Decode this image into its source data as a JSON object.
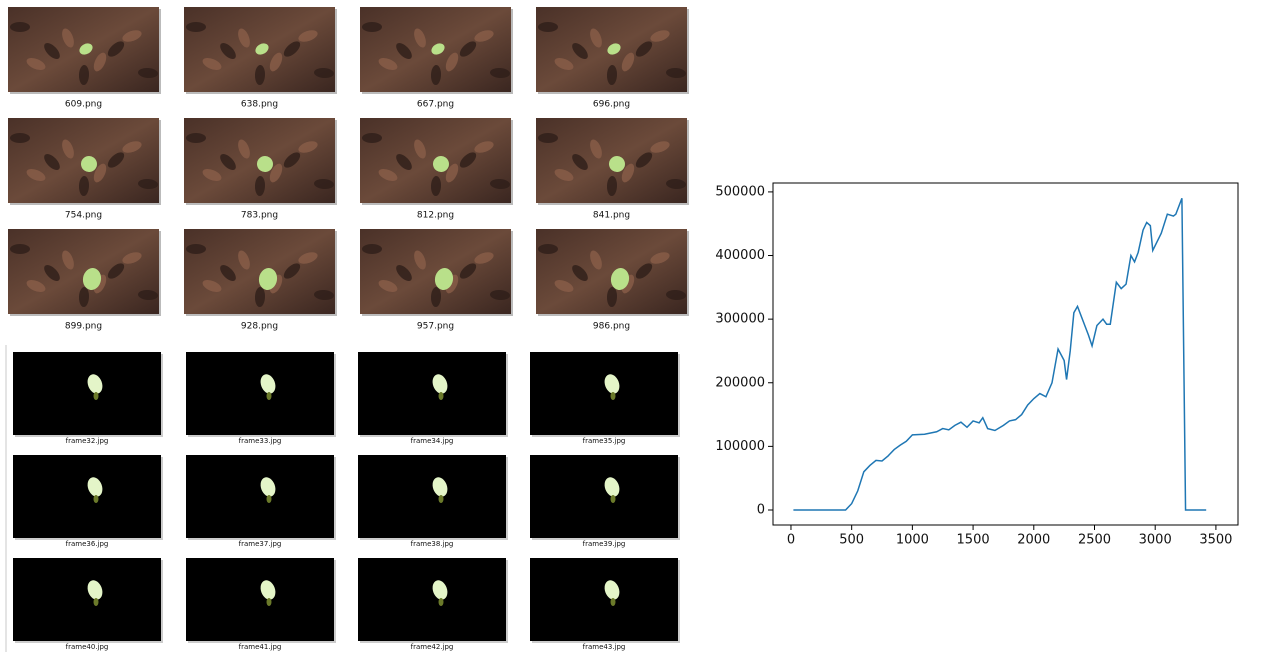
{
  "top_grid": {
    "files": [
      "609.png",
      "638.png",
      "667.png",
      "696.png",
      "754.png",
      "783.png",
      "812.png",
      "841.png",
      "899.png",
      "928.png",
      "957.png",
      "986.png"
    ]
  },
  "bottom_grid": {
    "files": [
      "frame32.jpg",
      "frame33.jpg",
      "frame34.jpg",
      "frame35.jpg",
      "frame36.jpg",
      "frame37.jpg",
      "frame38.jpg",
      "frame39.jpg",
      "frame40.jpg",
      "frame41.jpg",
      "frame42.jpg",
      "frame43.jpg"
    ]
  },
  "chart_data": {
    "type": "line",
    "x": [
      20,
      450,
      500,
      550,
      600,
      650,
      700,
      750,
      800,
      850,
      900,
      950,
      1000,
      1100,
      1200,
      1250,
      1300,
      1350,
      1400,
      1450,
      1500,
      1550,
      1580,
      1620,
      1680,
      1750,
      1800,
      1850,
      1900,
      1950,
      2000,
      2050,
      2100,
      2150,
      2200,
      2250,
      2270,
      2300,
      2330,
      2360,
      2400,
      2450,
      2480,
      2520,
      2570,
      2600,
      2630,
      2680,
      2720,
      2760,
      2800,
      2830,
      2860,
      2900,
      2930,
      2960,
      2980,
      3050,
      3100,
      3150,
      3170,
      3220,
      3250,
      3420
    ],
    "series": [
      {
        "color": "#1f77b4",
        "values": [
          0,
          0,
          10000,
          30000,
          60000,
          70000,
          78000,
          77000,
          85000,
          95000,
          102000,
          108000,
          118000,
          119000,
          123000,
          128000,
          126000,
          133000,
          138000,
          130000,
          140000,
          137000,
          145000,
          128000,
          125000,
          133000,
          140000,
          142000,
          150000,
          165000,
          175000,
          183000,
          178000,
          200000,
          253000,
          235000,
          205000,
          250000,
          310000,
          320000,
          300000,
          275000,
          258000,
          290000,
          300000,
          292000,
          292000,
          358000,
          348000,
          355000,
          400000,
          390000,
          405000,
          440000,
          452000,
          447000,
          408000,
          435000,
          465000,
          462000,
          465000,
          490000,
          0,
          0
        ]
      }
    ],
    "xlim": [
      -148,
      3682
    ],
    "ylim": [
      -23600,
      514000
    ],
    "xticks": [
      0,
      500,
      1000,
      1500,
      2000,
      2500,
      3000,
      3500
    ],
    "yticks": [
      0,
      100000,
      200000,
      300000,
      400000,
      500000
    ]
  }
}
